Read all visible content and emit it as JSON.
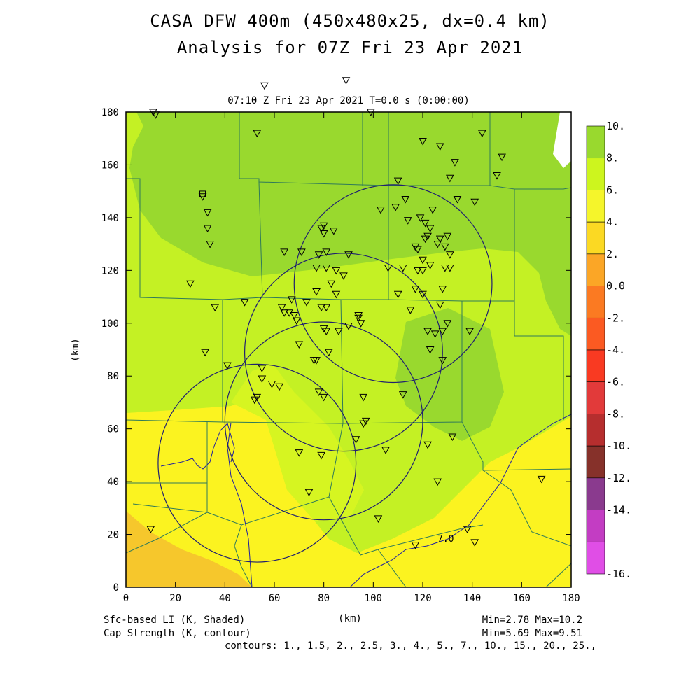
{
  "header": {
    "title_line1": "CASA DFW 400m (450x480x25, dx=0.4 km)",
    "title_line2": "Analysis for 07Z Fri 23 Apr 2021",
    "subtitle": "07:10 Z Fri 23 Apr 2021    T=0.0 s (0:00:00)"
  },
  "axes": {
    "xlabel": "(km)",
    "ylabel": "(km)",
    "x_ticks": [
      "0",
      "20",
      "40",
      "60",
      "80",
      "100",
      "120",
      "140",
      "160",
      "180"
    ],
    "y_ticks": [
      "0",
      "20",
      "40",
      "60",
      "80",
      "100",
      "120",
      "140",
      "160",
      "180"
    ]
  },
  "colorbar": {
    "labels": [
      "10.",
      "8.",
      "6.",
      "4.",
      "2.",
      "0.0",
      "-2.",
      "-4.",
      "-6.",
      "-8.",
      "-10.",
      "-12.",
      "-14.",
      "-16."
    ],
    "colors": [
      "#99d92e",
      "#cdf51e",
      "#f5f52b",
      "#fbd923",
      "#fba626",
      "#fb7a22",
      "#fb5a22",
      "#f93a22",
      "#e23a3a",
      "#b62e2e",
      "#86312a",
      "#8a3a8e",
      "#c33dc3",
      "#e04ee6"
    ]
  },
  "contour_label": "7.0",
  "footer": {
    "left1": "Sfc-based LI (K, Shaded)",
    "left2": "Cap Strength (K, contour)",
    "center": "(km)",
    "right1": "Min=2.78 Max=10.2",
    "right2": "Min=5.69 Max=9.51",
    "contours": "contours: 1., 1.5, 2., 2.5, 3., 4., 5., 7., 10., 15., 20., 25.,"
  },
  "map": {
    "radar_rings_km": [
      {
        "x": 108,
        "y": 115,
        "r": 40
      },
      {
        "x": 88,
        "y": 89,
        "r": 40
      },
      {
        "x": 80,
        "y": 63,
        "r": 40
      },
      {
        "x": 53,
        "y": 47,
        "r": 40
      }
    ],
    "stations_km": [
      [
        11,
        180
      ],
      [
        12,
        179
      ],
      [
        56,
        190
      ],
      [
        89,
        192
      ],
      [
        53,
        172
      ],
      [
        99,
        180
      ],
      [
        120,
        169
      ],
      [
        127,
        167
      ],
      [
        144,
        172
      ],
      [
        133,
        161
      ],
      [
        152,
        163
      ],
      [
        150,
        156
      ],
      [
        131,
        155
      ],
      [
        110,
        154
      ],
      [
        113,
        147
      ],
      [
        109,
        144
      ],
      [
        103,
        143
      ],
      [
        124,
        143
      ],
      [
        119,
        140
      ],
      [
        121,
        138
      ],
      [
        114,
        139
      ],
      [
        123,
        136
      ],
      [
        122,
        133
      ],
      [
        127,
        132
      ],
      [
        121,
        132
      ],
      [
        117,
        129
      ],
      [
        129,
        129
      ],
      [
        118,
        128
      ],
      [
        120,
        124
      ],
      [
        123,
        122
      ],
      [
        120,
        120
      ],
      [
        129,
        121
      ],
      [
        131,
        121
      ],
      [
        112,
        121
      ],
      [
        106,
        121
      ],
      [
        118,
        120
      ],
      [
        141,
        146
      ],
      [
        134,
        147
      ],
      [
        126,
        130
      ],
      [
        130,
        133
      ],
      [
        131,
        126
      ],
      [
        128,
        113
      ],
      [
        117,
        113
      ],
      [
        120,
        111
      ],
      [
        110,
        111
      ],
      [
        115,
        105
      ],
      [
        127,
        107
      ],
      [
        122,
        97
      ],
      [
        125,
        96
      ],
      [
        128,
        97
      ],
      [
        130,
        100
      ],
      [
        123,
        90
      ],
      [
        128,
        86
      ],
      [
        122,
        54
      ],
      [
        126,
        40
      ],
      [
        132,
        57
      ],
      [
        139,
        97
      ],
      [
        141,
        17
      ],
      [
        138,
        22
      ],
      [
        117,
        16
      ],
      [
        168,
        41
      ],
      [
        33,
        142
      ],
      [
        33,
        136
      ],
      [
        34,
        130
      ],
      [
        31,
        148
      ],
      [
        26,
        115
      ],
      [
        36,
        106
      ],
      [
        32,
        89
      ],
      [
        48,
        108
      ],
      [
        41,
        84
      ],
      [
        64,
        127
      ],
      [
        71,
        127
      ],
      [
        80,
        137
      ],
      [
        79,
        136
      ],
      [
        80,
        134
      ],
      [
        84,
        135
      ],
      [
        81,
        127
      ],
      [
        78,
        126
      ],
      [
        90,
        126
      ],
      [
        77,
        121
      ],
      [
        81,
        121
      ],
      [
        85,
        120
      ],
      [
        88,
        118
      ],
      [
        83,
        115
      ],
      [
        85,
        111
      ],
      [
        77,
        112
      ],
      [
        67,
        109
      ],
      [
        63,
        106
      ],
      [
        64,
        104
      ],
      [
        66,
        104
      ],
      [
        68,
        103
      ],
      [
        69,
        101
      ],
      [
        73,
        108
      ],
      [
        79,
        106
      ],
      [
        81,
        106
      ],
      [
        80,
        98
      ],
      [
        81,
        97
      ],
      [
        86,
        97
      ],
      [
        90,
        99
      ],
      [
        94,
        102
      ],
      [
        95,
        100
      ],
      [
        94,
        103
      ],
      [
        70,
        92
      ],
      [
        76,
        86
      ],
      [
        77,
        86
      ],
      [
        82,
        89
      ],
      [
        96,
        62
      ],
      [
        93,
        56
      ],
      [
        97,
        63
      ],
      [
        96,
        72
      ],
      [
        105,
        52
      ],
      [
        112,
        73
      ],
      [
        80,
        72
      ],
      [
        78,
        74
      ],
      [
        59,
        77
      ],
      [
        55,
        79
      ],
      [
        55,
        83
      ],
      [
        52,
        71
      ],
      [
        53,
        72
      ],
      [
        62,
        76
      ],
      [
        70,
        51
      ],
      [
        79,
        50
      ],
      [
        74,
        36
      ],
      [
        102,
        26
      ],
      [
        10,
        22
      ]
    ],
    "square_station_km": [
      31,
      149
    ]
  }
}
